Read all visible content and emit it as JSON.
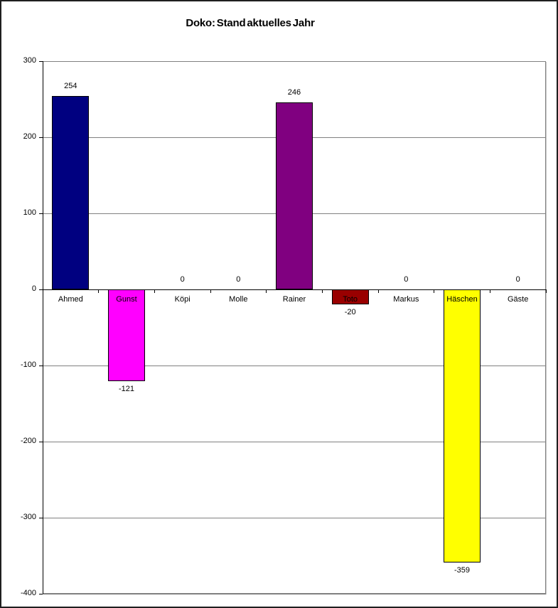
{
  "chart_data": {
    "type": "bar",
    "title": "Doko: Stand aktuelles Jahr",
    "categories": [
      "Ahmed",
      "Gunst",
      "Köpi",
      "Molle",
      "Rainer",
      "Toto",
      "Markus",
      "Häschen",
      "Gäste"
    ],
    "values": [
      254,
      -121,
      0,
      0,
      246,
      -20,
      0,
      -359,
      0
    ],
    "value_labels": [
      "254",
      "-121",
      "0",
      "0",
      "246",
      "-20",
      "0",
      "-359",
      "0"
    ],
    "bar_colors": [
      "#000080",
      "#FF00FF",
      null,
      null,
      "#800080",
      "#990000",
      null,
      "#FFFF00",
      null
    ],
    "xlabel": "",
    "ylabel": "",
    "ylim": [
      -400,
      300
    ],
    "yticks": [
      300,
      200,
      100,
      0,
      -100,
      -200,
      -300,
      -400
    ],
    "grid": true,
    "legend_position": "none",
    "layout": {
      "gridline_color": "#808080",
      "axis_color": "#000000",
      "plot_border_color": "#808080",
      "bar_border_color": "#000000",
      "background": "#FFFFFF",
      "outer_border_color": "#1F1F1F",
      "label_color": "#000000"
    }
  }
}
